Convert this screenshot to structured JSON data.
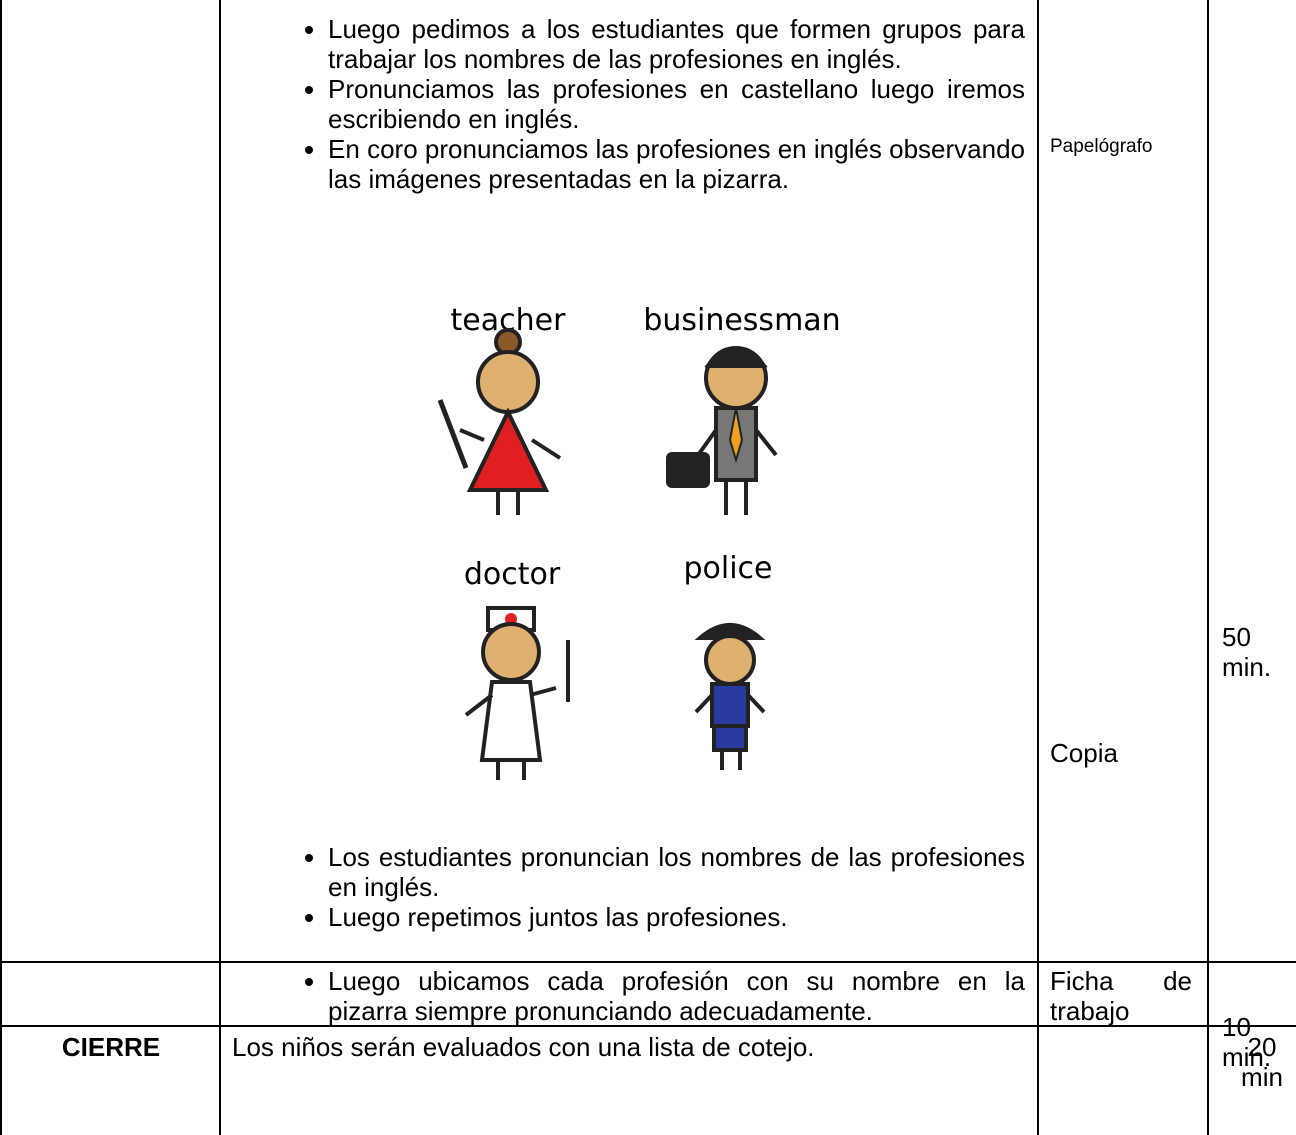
{
  "table": {
    "rows": [
      {
        "bullets_before": [
          "Luego pedimos a los estudiantes que formen grupos para trabajar los nombres de las profesiones en inglés.",
          "Pronunciamos las profesiones en castellano luego iremos escribiendo en inglés.",
          "En coro pronunciamos las profesiones en inglés observando las imágenes presentadas en la pizarra."
        ],
        "image_labels": [
          "teacher",
          "businessman",
          "doctor",
          "police"
        ],
        "bullets_after": [
          "Los estudiantes pronuncian los nombres de las profesiones en inglés.",
          "Luego repetimos juntos las profesiones."
        ],
        "resources": [
          "Papelógrafo",
          "Copia"
        ],
        "time": "50 min."
      },
      {
        "bullets": [
          "Luego ubicamos cada profesión con su nombre en la pizarra siempre pronunciando adecuadamente."
        ],
        "resource": "Ficha de trabajo",
        "time": "10 min."
      },
      {
        "stage": "CIERRE",
        "text": "Los niños serán evaluados con una lista de cotejo.",
        "time": "20 min"
      }
    ]
  }
}
